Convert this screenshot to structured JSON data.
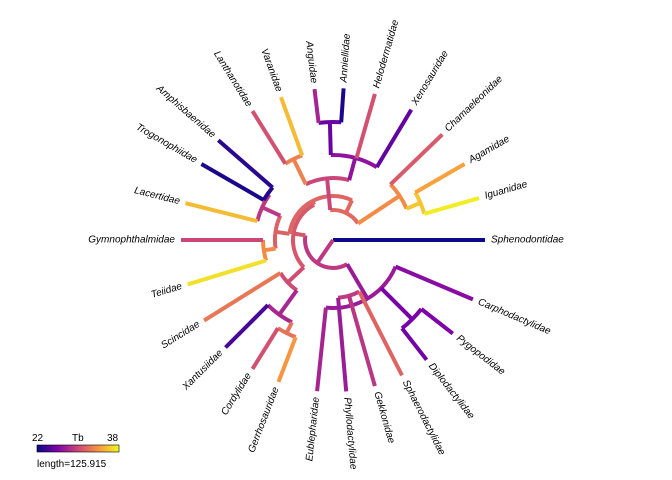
{
  "legend": {
    "min_label": "22",
    "title": "Tb",
    "max_label": "38",
    "scale_label": "length=125.915",
    "min": 22,
    "max": 38,
    "palette": [
      "#0d0887",
      "#7e03a8",
      "#cc4778",
      "#f89540",
      "#f0f921"
    ]
  },
  "taxa": [
    {
      "name": "Sphenodontidae",
      "angle": 0,
      "tb": 22.0
    },
    {
      "name": "Carphodactylidae",
      "angle": 23,
      "tb": 26.5
    },
    {
      "name": "Pygopodidae",
      "angle": 38,
      "tb": 26.0
    },
    {
      "name": "Diplodactylidae",
      "angle": 52,
      "tb": 25.5
    },
    {
      "name": "Sphaerodactylidae",
      "angle": 63,
      "tb": 31.5
    },
    {
      "name": "Gekkonidae",
      "angle": 74,
      "tb": 29.0
    },
    {
      "name": "Phyllodactylidae",
      "angle": 85,
      "tb": 27.5
    },
    {
      "name": "Eublepharidae",
      "angle": 96,
      "tb": 28.0
    },
    {
      "name": "Gerrhosauridae",
      "angle": 111,
      "tb": 34.0
    },
    {
      "name": "Cordylidae",
      "angle": 122,
      "tb": 30.5
    },
    {
      "name": "Xantusiidae",
      "angle": 135,
      "tb": 24.0
    },
    {
      "name": "Scincidae",
      "angle": 148,
      "tb": 32.5
    },
    {
      "name": "Teiidae",
      "angle": 163,
      "tb": 37.0
    },
    {
      "name": "Gymnophthalmidae",
      "angle": 180,
      "tb": 30.0
    },
    {
      "name": "Lacertidae",
      "angle": 194,
      "tb": 35.5
    },
    {
      "name": "Trogonophiidae",
      "angle": 210,
      "tb": 22.5
    },
    {
      "name": "Amphisbaenidae",
      "angle": 221,
      "tb": 23.0
    },
    {
      "name": "Lanthanotidae",
      "angle": 238,
      "tb": 30.5
    },
    {
      "name": "Varanidae",
      "angle": 250,
      "tb": 35.5
    },
    {
      "name": "Anguidae",
      "angle": 263,
      "tb": 28.0
    },
    {
      "name": "Anniellidae",
      "angle": 274,
      "tb": 22.5
    },
    {
      "name": "Helodermatidae",
      "angle": 286,
      "tb": 30.5
    },
    {
      "name": "Xenosauridae",
      "angle": 301,
      "tb": 25.0
    },
    {
      "name": "Chamaeleonidae",
      "angle": 316,
      "tb": 31.0
    },
    {
      "name": "Agamidae",
      "angle": 330,
      "tb": 34.5
    },
    {
      "name": "Iguanidae",
      "angle": 344,
      "tb": 37.5
    }
  ]
}
